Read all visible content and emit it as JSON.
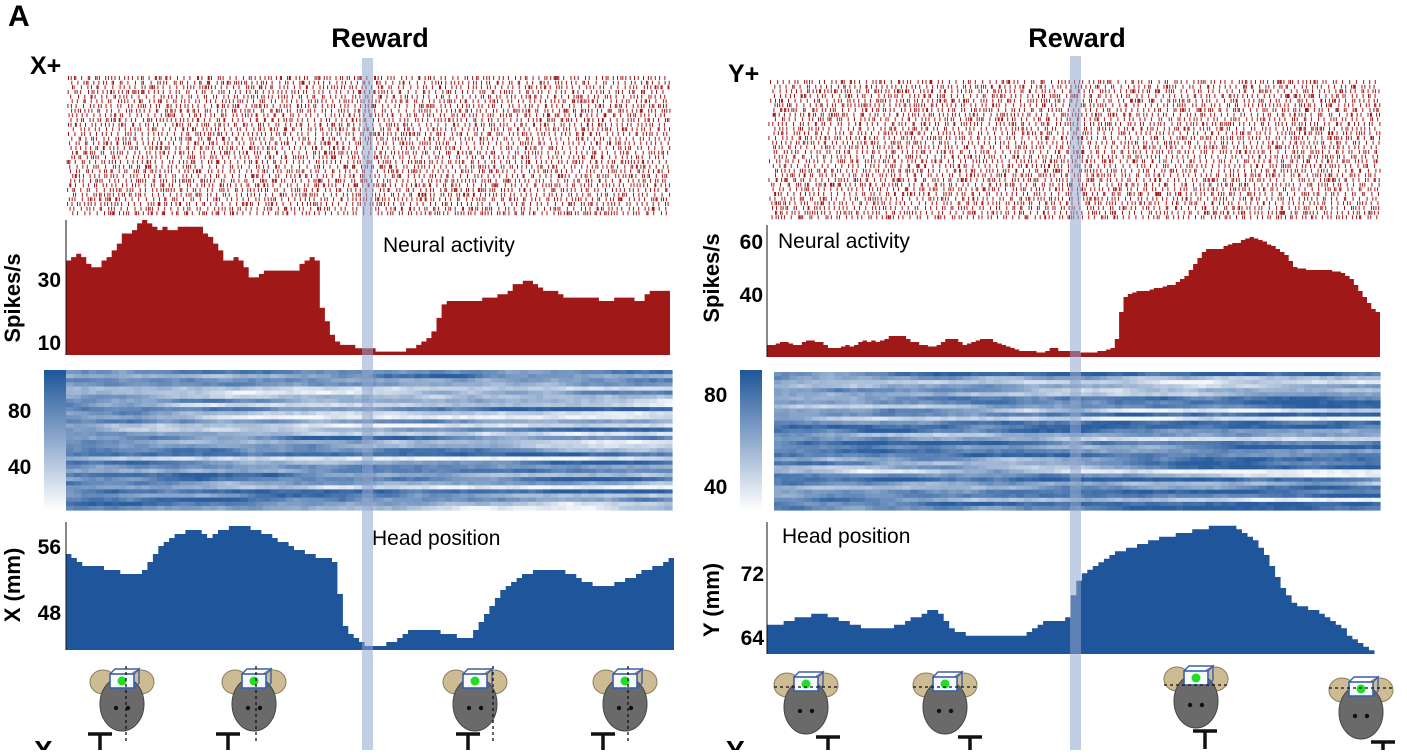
{
  "figure_label": "A",
  "chart_data": [
    {
      "type": "raster",
      "panel": "left",
      "title": "Reward",
      "label": "X+",
      "trials": 30,
      "bins": 120,
      "colors": {
        "spike": "#a01818"
      }
    },
    {
      "type": "area",
      "panel": "left",
      "annotation": "Neural activity",
      "ylabel": "Spikes/s",
      "yticks": [
        10,
        30
      ],
      "ylim": [
        5,
        45
      ],
      "values": [
        33,
        34,
        35,
        34,
        32,
        31,
        31,
        33,
        34,
        36,
        38,
        41,
        41,
        42,
        44,
        45,
        44,
        43,
        42,
        43,
        42,
        42,
        43,
        43,
        43,
        43,
        43,
        41,
        40,
        38,
        36,
        33,
        33,
        34,
        33,
        31,
        28,
        28,
        29,
        30,
        30,
        30,
        30,
        30,
        30,
        30,
        32,
        33,
        34,
        33,
        19,
        15,
        11,
        9,
        8,
        8,
        8,
        7,
        7,
        7,
        7,
        6,
        6,
        6,
        6,
        6,
        6,
        7,
        7,
        8,
        9,
        10,
        12,
        16,
        20,
        21,
        21,
        21,
        21,
        21,
        21,
        21,
        22,
        22,
        22,
        23,
        23,
        24,
        26,
        26,
        27,
        27,
        26,
        25,
        24,
        24,
        24,
        23,
        22,
        22,
        22,
        22,
        22,
        22,
        22,
        21,
        21,
        21,
        22,
        22,
        22,
        22,
        21,
        21,
        23,
        24,
        24,
        24,
        24
      ],
      "colors": {
        "fill": "#a01818"
      }
    },
    {
      "type": "heatmap",
      "panel": "left",
      "colorbar_ticks": [
        40,
        80
      ],
      "clim": [
        20,
        100
      ],
      "rows": 34,
      "cols": 80,
      "colors": {
        "high": "#1f559a",
        "low": "#ffffff"
      }
    },
    {
      "type": "area",
      "panel": "left",
      "annotation": "Head position",
      "ylabel": "X (mm)",
      "yticks": [
        48,
        56
      ],
      "ylim": [
        43,
        59
      ],
      "values": [
        55,
        54.5,
        54,
        53.5,
        53.5,
        53.5,
        53.5,
        53,
        53,
        53,
        52.5,
        52.5,
        52.5,
        52.5,
        53,
        54,
        55,
        56,
        56.5,
        57,
        57.5,
        57.5,
        58,
        58,
        58,
        57.5,
        57,
        57.5,
        58,
        58,
        58.5,
        58.5,
        58.5,
        58.5,
        58,
        58,
        57.5,
        57.5,
        57,
        56.5,
        56.5,
        56,
        55.5,
        55.5,
        55,
        55,
        54.5,
        54.5,
        54.5,
        54,
        50,
        46,
        45,
        44.5,
        44,
        43.5,
        43.5,
        43.5,
        43.5,
        44,
        44,
        44.5,
        45,
        45.5,
        45.5,
        45.5,
        45.5,
        45.5,
        45.5,
        45,
        45,
        45,
        44.5,
        44.5,
        44.5,
        45.5,
        46.5,
        47.5,
        48.5,
        49.5,
        50.5,
        51,
        51.5,
        52,
        52.5,
        52.5,
        53,
        53,
        53,
        53,
        53,
        53,
        52.5,
        52.5,
        52,
        51.5,
        51.5,
        51,
        51,
        51,
        51,
        51.5,
        51.5,
        52,
        52,
        52.5,
        53,
        53,
        53.5,
        53.5,
        54,
        54.5
      ],
      "colors": {
        "fill": "#1f559a"
      }
    },
    {
      "type": "raster",
      "panel": "right",
      "title": "Reward",
      "label": "Y+",
      "trials": 30,
      "bins": 120,
      "colors": {
        "spike": "#a01818"
      }
    },
    {
      "type": "area",
      "panel": "right",
      "annotation": "Neural activity",
      "ylabel": "Spikes/s",
      "yticks": [
        40,
        60
      ],
      "ylim": [
        20,
        64
      ],
      "values": [
        24,
        24,
        24.5,
        25,
        25,
        24.5,
        24,
        24,
        25,
        25.5,
        25.5,
        25,
        25,
        24,
        23,
        23,
        23,
        23.5,
        24,
        23.5,
        24,
        25,
        25.5,
        25,
        25.5,
        25,
        25.5,
        26,
        27,
        27,
        27,
        27,
        26,
        25,
        25,
        24,
        24,
        23.5,
        23.5,
        24,
        25,
        26,
        26,
        26,
        25,
        24,
        24.5,
        25,
        25.5,
        26,
        26,
        26,
        25,
        24.5,
        24,
        23.5,
        23,
        22.5,
        22,
        22,
        22,
        22,
        21.5,
        21.5,
        22,
        23,
        23,
        22,
        22,
        22,
        22,
        22,
        21.5,
        21.5,
        21.5,
        21.5,
        22,
        22,
        22.5,
        23,
        26,
        35,
        40,
        41,
        41.5,
        42,
        42,
        42,
        42.5,
        43,
        43,
        43.5,
        44,
        44,
        45,
        46,
        47,
        49,
        51,
        53,
        55,
        56,
        56,
        56,
        56,
        57,
        57.5,
        58,
        58,
        59,
        59.5,
        60,
        59.5,
        59,
        58.5,
        57.5,
        57,
        56,
        55,
        54,
        52,
        50,
        49.5,
        49.5,
        49,
        49,
        49,
        49,
        49,
        49,
        48.5,
        48.5,
        48,
        47,
        46,
        44,
        42,
        40,
        38,
        36,
        35
      ],
      "colors": {
        "fill": "#a01818"
      }
    },
    {
      "type": "heatmap",
      "panel": "right",
      "colorbar_ticks": [
        40,
        80
      ],
      "clim": [
        30,
        95
      ],
      "rows": 34,
      "cols": 80,
      "colors": {
        "high": "#1f559a",
        "low": "#ffffff"
      }
    },
    {
      "type": "area",
      "panel": "right",
      "annotation": "Head position",
      "ylabel": "Y (mm)",
      "yticks": [
        64,
        72
      ],
      "ylim": [
        62,
        80
      ],
      "values": [
        66,
        66,
        66,
        66.5,
        66.5,
        67,
        67,
        67,
        67.5,
        67.5,
        67.5,
        67,
        67,
        66.5,
        66.5,
        66,
        66,
        65.5,
        65.5,
        65.5,
        65.5,
        65.5,
        65.5,
        66,
        66,
        66.5,
        67,
        67,
        67.5,
        68,
        68,
        67.5,
        66.5,
        65.5,
        65,
        65,
        64.5,
        64.5,
        64.5,
        64.5,
        64.5,
        64.5,
        64.5,
        64.5,
        64.5,
        64.5,
        64.5,
        65,
        65.5,
        66,
        66.5,
        66.5,
        66.5,
        66.5,
        67,
        70,
        72,
        73,
        73.5,
        74,
        74.5,
        75,
        75.5,
        76,
        76,
        76.5,
        76.5,
        77,
        77,
        77.5,
        77.5,
        78,
        78,
        78,
        78.5,
        78.5,
        78.5,
        79,
        79,
        79,
        79.5,
        79.5,
        79.5,
        79.5,
        79.5,
        79,
        78.5,
        78,
        77.5,
        76.5,
        75.5,
        74,
        72.5,
        71,
        70,
        69,
        68.5,
        68.5,
        68,
        68,
        67.5,
        67,
        66.5,
        66,
        65.5,
        64.5,
        64,
        63.5,
        63,
        62.5,
        62
      ]
    }
  ],
  "colors": {
    "reward_line": "#8fa6cc",
    "mouse_body": "#6a6a6a",
    "mouse_ear": "#cdbb93",
    "camera_led": "#22dd22",
    "camera_box": "#3a5fa8"
  },
  "bottom_labels": [
    "X",
    "Y"
  ]
}
